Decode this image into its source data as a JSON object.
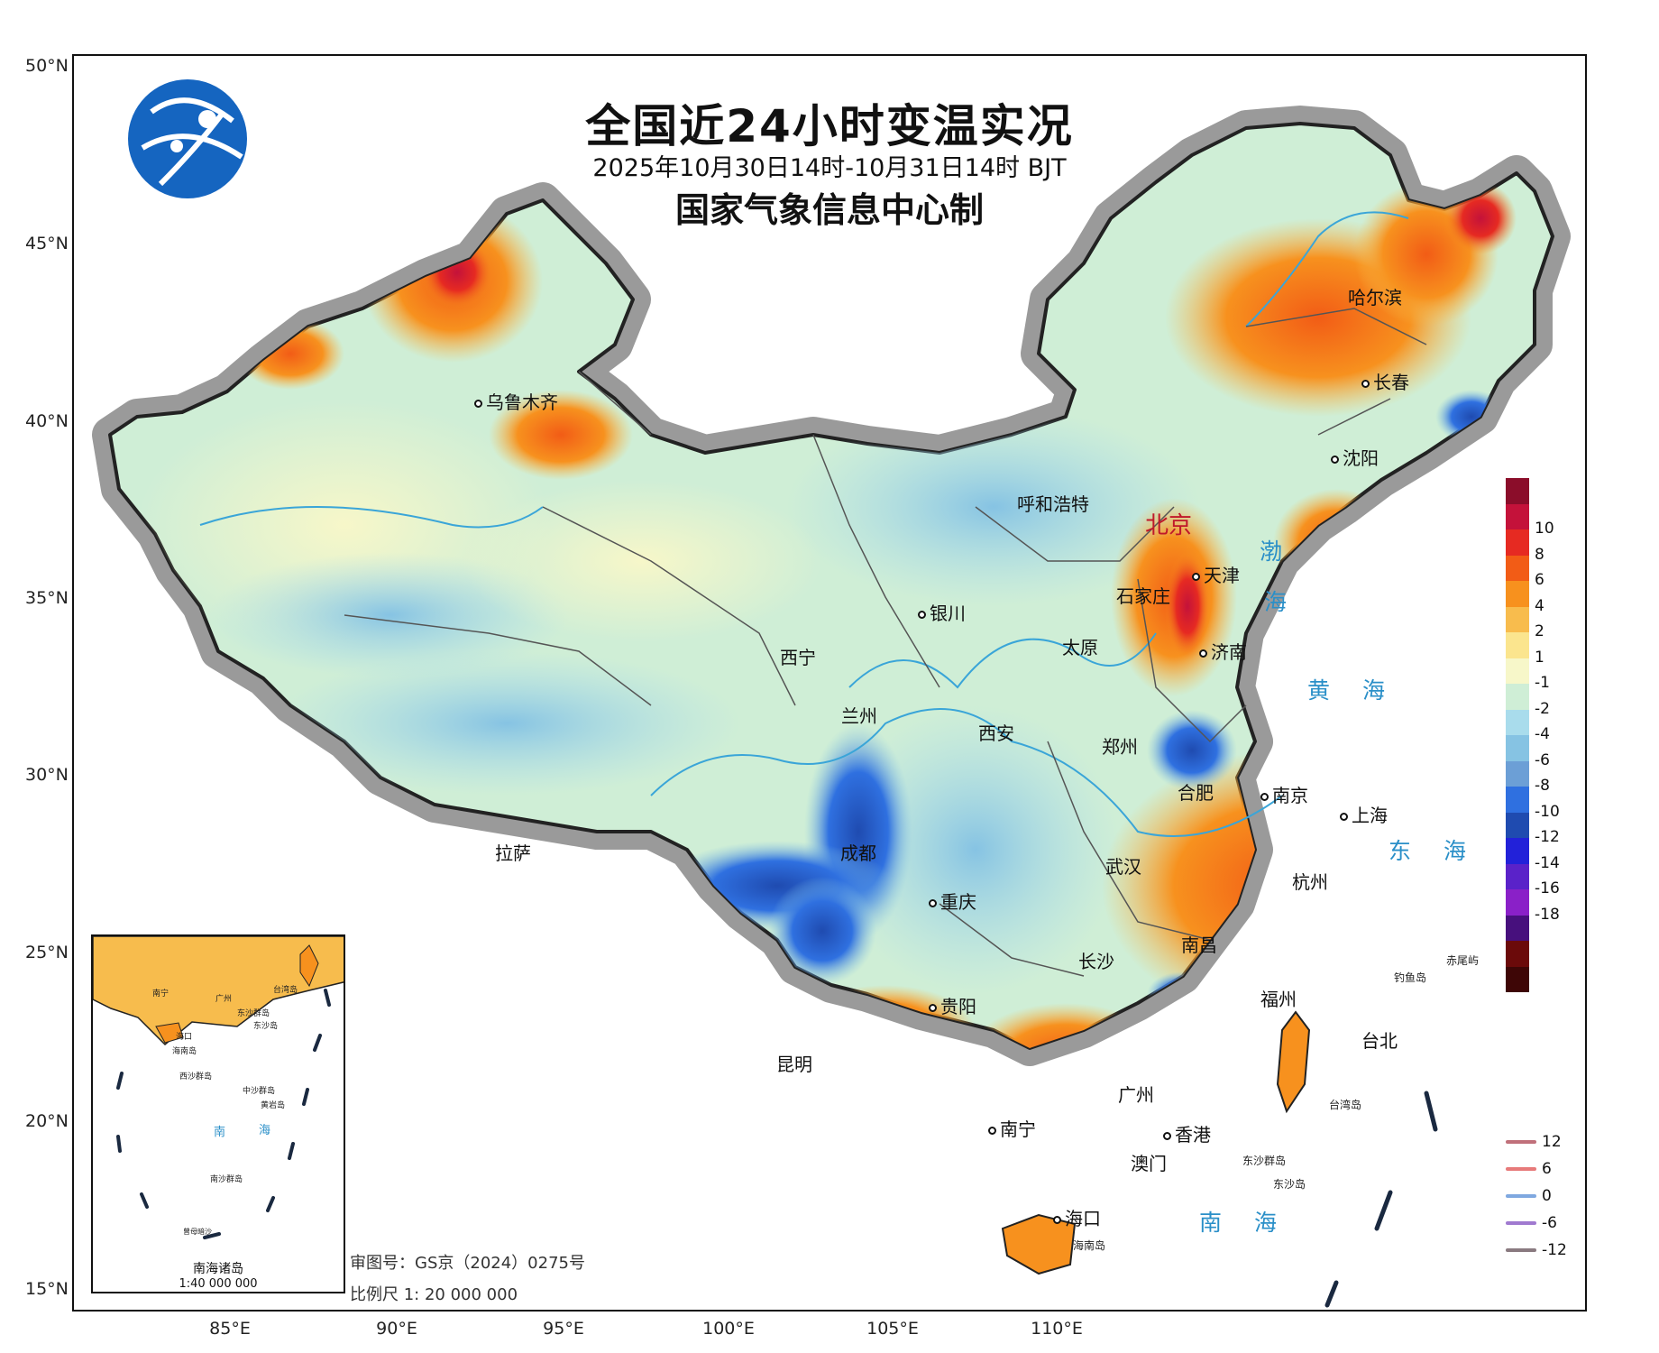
{
  "title": "全国近24小时变温实况",
  "date_range": "2025年10月30日14时-10月31日14时 BJT",
  "issuer": "国家气象信息中心制",
  "latitude_labels": [
    "50°N",
    "45°N",
    "40°N",
    "35°N",
    "30°N",
    "25°N",
    "20°N",
    "15°N"
  ],
  "longitude_labels": [
    "85°E",
    "90°E",
    "95°E",
    "100°E",
    "105°E",
    "110°E"
  ],
  "cities": [
    {
      "id": "beijing",
      "label": "北京",
      "capital": true
    },
    {
      "id": "urumqi",
      "label": "乌鲁木齐"
    },
    {
      "id": "harbin",
      "label": "哈尔滨"
    },
    {
      "id": "changchun",
      "label": "长春"
    },
    {
      "id": "shenyang",
      "label": "沈阳"
    },
    {
      "id": "hohhot",
      "label": "呼和浩特"
    },
    {
      "id": "tianjin",
      "label": "天津"
    },
    {
      "id": "shijiazhuang",
      "label": "石家庄"
    },
    {
      "id": "yinchuan",
      "label": "银川"
    },
    {
      "id": "taiyuan",
      "label": "太原"
    },
    {
      "id": "jinan",
      "label": "济南"
    },
    {
      "id": "xining",
      "label": "西宁"
    },
    {
      "id": "lanzhou",
      "label": "兰州"
    },
    {
      "id": "xian",
      "label": "西安"
    },
    {
      "id": "zhengzhou",
      "label": "郑州"
    },
    {
      "id": "hefei",
      "label": "合肥"
    },
    {
      "id": "nanjing",
      "label": "南京"
    },
    {
      "id": "shanghai",
      "label": "上海"
    },
    {
      "id": "lhasa",
      "label": "拉萨"
    },
    {
      "id": "chengdu",
      "label": "成都"
    },
    {
      "id": "wuhan",
      "label": "武汉"
    },
    {
      "id": "hangzhou",
      "label": "杭州"
    },
    {
      "id": "chongqing",
      "label": "重庆"
    },
    {
      "id": "changsha",
      "label": "长沙"
    },
    {
      "id": "nanchang",
      "label": "南昌"
    },
    {
      "id": "guiyang",
      "label": "贵阳"
    },
    {
      "id": "fuzhou",
      "label": "福州"
    },
    {
      "id": "taipei",
      "label": "台北"
    },
    {
      "id": "kunming",
      "label": "昆明"
    },
    {
      "id": "guangzhou",
      "label": "广州"
    },
    {
      "id": "nanning",
      "label": "南宁"
    },
    {
      "id": "hongkong",
      "label": "香港"
    },
    {
      "id": "macau",
      "label": "澳门"
    },
    {
      "id": "haikou",
      "label": "海口"
    }
  ],
  "sea_labels": {
    "bohai_1": "渤",
    "bohai_2": "海",
    "yellow_sea": "黄 海",
    "east_sea": "东 海",
    "south_sea": "南 海"
  },
  "island_labels": {
    "diaoyu": "钓鱼岛",
    "chiwei": "赤尾屿",
    "taiwan": "台湾岛",
    "dongsha_islands": "东沙群岛",
    "dongsha": "东沙岛",
    "hainan": "海南岛"
  },
  "temp_legend": {
    "colors": [
      "#8b0d2a",
      "#c4123a",
      "#e62a22",
      "#f25c16",
      "#f7911e",
      "#f8bc4d",
      "#fbe58e",
      "#f7f7c9",
      "#cfeed6",
      "#a9dcec",
      "#86c3e3",
      "#6c9fd6",
      "#2f70e0",
      "#1f4bb0",
      "#2221d9",
      "#5a22c9",
      "#8a20c8",
      "#47107d",
      "#6b0a0a",
      "#3e0606"
    ],
    "labels": [
      "10",
      "8",
      "6",
      "4",
      "2",
      "1",
      "-1",
      "-2",
      "-4",
      "-6",
      "-8",
      "-10",
      "-12",
      "-14",
      "-16",
      "-18"
    ]
  },
  "isoline_legend": [
    {
      "label": "12",
      "color": "#c0707a"
    },
    {
      "label": "6",
      "color": "#e77a7a"
    },
    {
      "label": "0",
      "color": "#7fa8e0"
    },
    {
      "label": "-6",
      "color": "#a07ad0"
    },
    {
      "label": "-12",
      "color": "#8a7a80"
    }
  ],
  "inset": {
    "title": "南海诸岛",
    "scale": "1:40 000 000",
    "labels": {
      "nanning": "南宁",
      "guangzhou": "广州",
      "taiwan": "台湾岛",
      "dongsha_islands": "东沙群岛",
      "dongsha": "东沙岛",
      "haikou": "海口",
      "hainan": "海南岛",
      "xisha": "西沙群岛",
      "zhongsha": "中沙群岛",
      "huangyan": "黄岩岛",
      "sea_south": "南",
      "sea_sea": "海",
      "nansha": "南沙群岛",
      "zengmu": "曾母暗沙"
    }
  },
  "map_review_number": "审图号：GS京（2024）0275号",
  "scale": "比例尺 1: 20 000 000"
}
